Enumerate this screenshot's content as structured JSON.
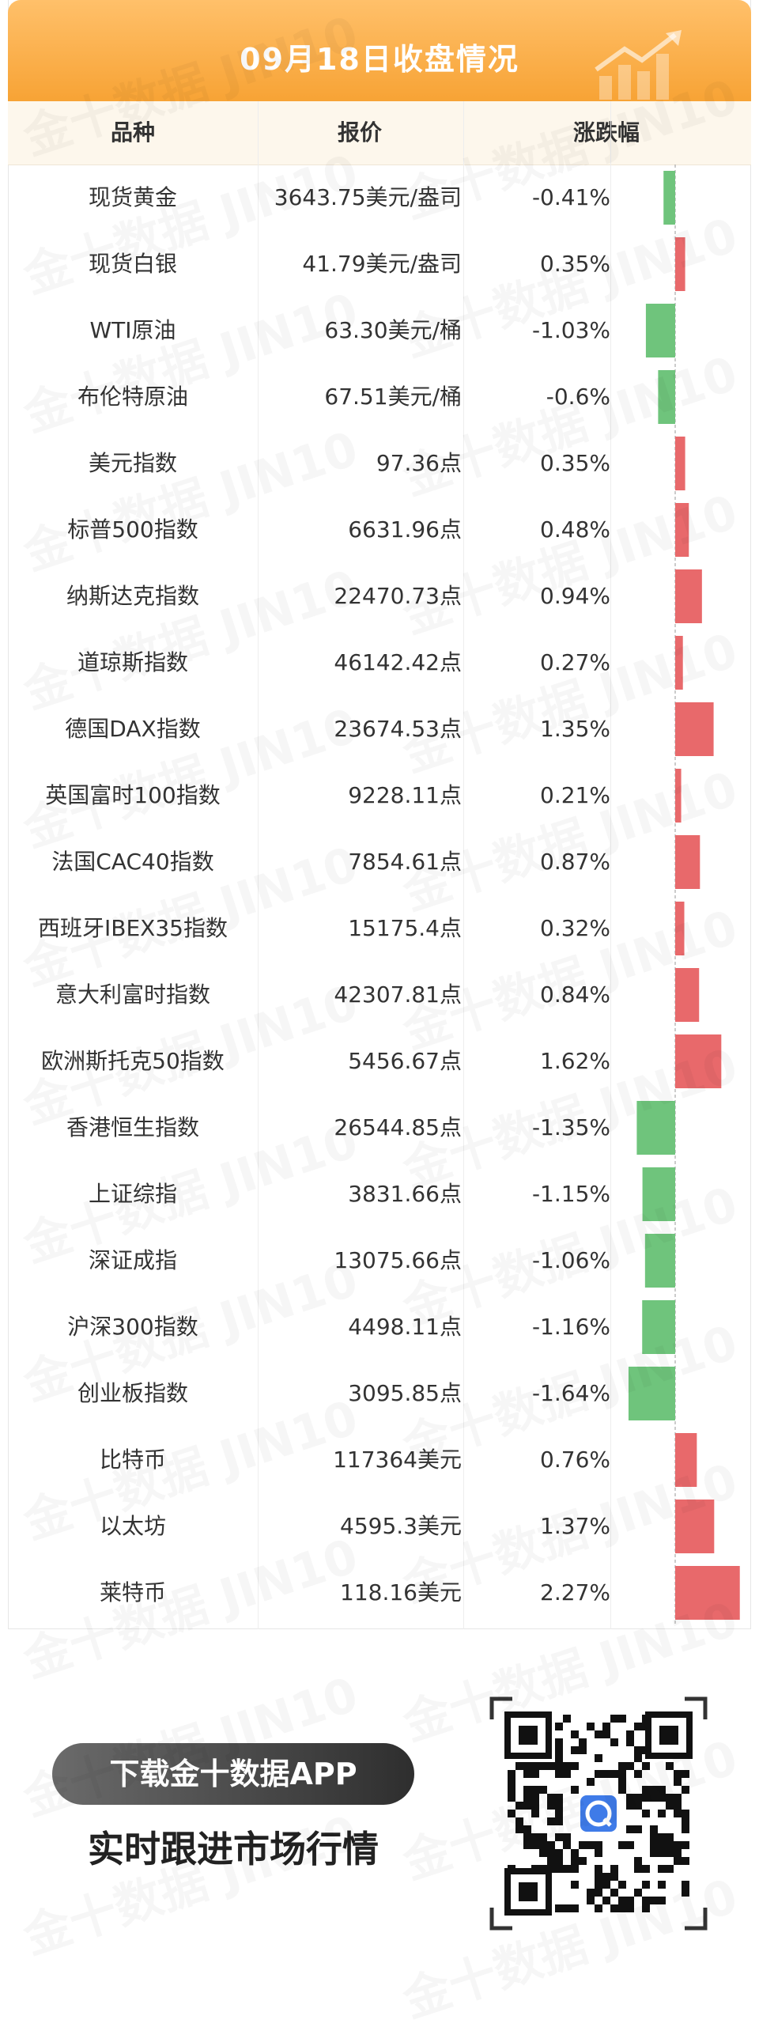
{
  "title": "09月18日收盘情况",
  "columns": [
    "品种",
    "报价",
    "涨跌幅"
  ],
  "rows": [
    {
      "name": "现货黄金",
      "price": "3643.75美元/盎司",
      "change": "-0.41%"
    },
    {
      "name": "现货白银",
      "price": "41.79美元/盎司",
      "change": "0.35%"
    },
    {
      "name": "WTI原油",
      "price": "63.30美元/桶",
      "change": "-1.03%"
    },
    {
      "name": "布伦特原油",
      "price": "67.51美元/桶",
      "change": "-0.6%"
    },
    {
      "name": "美元指数",
      "price": "97.36点",
      "change": "0.35%"
    },
    {
      "name": "标普500指数",
      "price": "6631.96点",
      "change": "0.48%"
    },
    {
      "name": "纳斯达克指数",
      "price": "22470.73点",
      "change": "0.94%"
    },
    {
      "name": "道琼斯指数",
      "price": "46142.42点",
      "change": "0.27%"
    },
    {
      "name": "德国DAX指数",
      "price": "23674.53点",
      "change": "1.35%"
    },
    {
      "name": "英国富时100指数",
      "price": "9228.11点",
      "change": "0.21%"
    },
    {
      "name": "法国CAC40指数",
      "price": "7854.61点",
      "change": "0.87%"
    },
    {
      "name": "西班牙IBEX35指数",
      "price": "15175.4点",
      "change": "0.32%"
    },
    {
      "name": "意大利富时指数",
      "price": "42307.81点",
      "change": "0.84%"
    },
    {
      "name": "欧洲斯托克50指数",
      "price": "5456.67点",
      "change": "1.62%"
    },
    {
      "name": "香港恒生指数",
      "price": "26544.85点",
      "change": "-1.35%"
    },
    {
      "name": "上证综指",
      "price": "3831.66点",
      "change": "-1.15%"
    },
    {
      "name": "深证成指",
      "price": "13075.66点",
      "change": "-1.06%"
    },
    {
      "name": "沪深300指数",
      "price": "4498.11点",
      "change": "-1.16%"
    },
    {
      "name": "创业板指数",
      "price": "3095.85点",
      "change": "-1.64%"
    },
    {
      "name": "比特币",
      "price": "117364美元",
      "change": "0.76%"
    },
    {
      "name": "以太坊",
      "price": "4595.3美元",
      "change": "1.37%"
    },
    {
      "name": "莱特币",
      "price": "118.16美元",
      "change": "2.27%"
    }
  ],
  "chart_data": {
    "type": "bar",
    "orientation": "horizontal",
    "categories": [
      "现货黄金",
      "现货白银",
      "WTI原油",
      "布伦特原油",
      "美元指数",
      "标普500指数",
      "纳斯达克指数",
      "道琼斯指数",
      "德国DAX指数",
      "英国富时100指数",
      "法国CAC40指数",
      "西班牙IBEX35指数",
      "意大利富时指数",
      "欧洲斯托克50指数",
      "香港恒生指数",
      "上证综指",
      "深证成指",
      "沪深300指数",
      "创业板指数",
      "比特币",
      "以太坊",
      "莱特币"
    ],
    "values": [
      -0.41,
      0.35,
      -1.03,
      -0.6,
      0.35,
      0.48,
      0.94,
      0.27,
      1.35,
      0.21,
      0.87,
      0.32,
      0.84,
      1.62,
      -1.35,
      -1.15,
      -1.06,
      -1.16,
      -1.64,
      0.76,
      1.37,
      2.27
    ],
    "colors": {
      "up": "#e8696b",
      "down": "#6fc47c",
      "zero_line": "#999999"
    }
  },
  "footer": {
    "button_label": "下载金十数据APP",
    "subtitle": "实时跟进市场行情"
  },
  "watermark": "金十数据 JIN10.COM",
  "colors": {
    "title_bar": "#f7a335",
    "header_bg": "#fdf7ec"
  }
}
